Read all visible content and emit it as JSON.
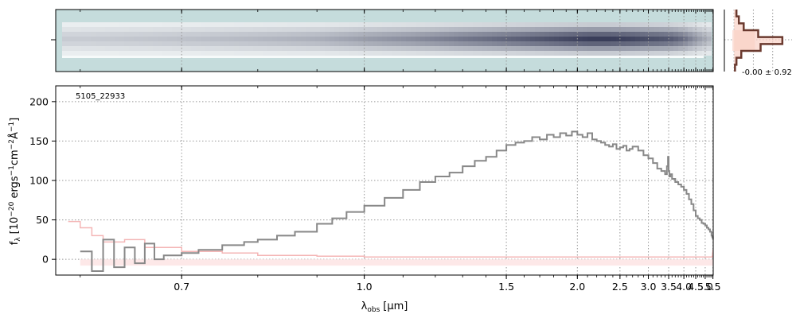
{
  "chart_data": [
    {
      "type": "heatmap",
      "description_ref": "2D spectrum",
      "x": [
        0.6,
        0.7,
        0.8,
        0.9,
        1.0,
        1.15,
        1.3,
        1.5,
        1.7,
        1.9,
        2.1,
        2.3,
        2.5,
        2.7,
        2.9,
        3.1,
        3.3,
        3.5,
        3.7,
        3.9,
        4.1,
        4.3,
        4.5,
        4.7,
        4.9,
        5.1,
        5.3,
        5.5
      ],
      "trace_intensity": [
        0.25,
        0.3,
        0.35,
        0.4,
        0.5,
        0.6,
        0.7,
        0.8,
        0.88,
        0.95,
        1.0,
        1.0,
        0.98,
        0.95,
        0.92,
        0.9,
        0.88,
        0.85,
        0.8,
        0.74,
        0.66,
        0.58,
        0.52,
        0.46,
        0.42,
        0.38,
        0.34,
        0.3
      ],
      "grid": true
    },
    {
      "type": "line",
      "annotation": "-0.00 ± 0.92",
      "profile_y": [
        -4,
        -3,
        -2,
        -1,
        0,
        1,
        2,
        3,
        4
      ],
      "profile_values": [
        0.05,
        0.1,
        0.2,
        0.5,
        1.0,
        0.55,
        0.15,
        0.05,
        0.02
      ],
      "xlim": [
        -0.2,
        1.2
      ],
      "grid": true
    },
    {
      "type": "line",
      "title": "",
      "annotation": "5105_22933",
      "xlabel": "λobs [μm]",
      "xlabel_main": "λ",
      "xlabel_sub": "obs",
      "xlabel_unit": "[μm]",
      "ylabel": "fλ [10−20 ergs−1cm−2Å−1]",
      "ylabel_f": "f",
      "ylabel_sub": "λ",
      "ylabel_open": "[10",
      "ylabel_e1": "−20",
      "ylabel_t1": " ergs",
      "ylabel_e2": "−1",
      "ylabel_t2": "cm",
      "ylabel_e3": "−2",
      "ylabel_t3": "Å",
      "ylabel_e4": "−1",
      "ylabel_close": "]",
      "xscale": "reciprocal",
      "xlim": [
        0.58,
        5.52
      ],
      "ylim": [
        -20,
        220
      ],
      "xticks": [
        0.7,
        1.0,
        1.5,
        2.0,
        2.5,
        3.0,
        3.5,
        4.0,
        4.5,
        5.0,
        5.5
      ],
      "xtick_labels": [
        "0.7",
        "1.0",
        "1.5",
        "2.0",
        "2.5",
        "3.0",
        "3.5",
        "4.0",
        "4.5",
        "5.0",
        "5.5"
      ],
      "yticks": [
        0,
        50,
        100,
        150,
        200
      ],
      "ytick_labels": [
        "0",
        "50",
        "100",
        "150",
        "200"
      ],
      "grid": true,
      "series": [
        {
          "color": "#888888",
          "x": [
            0.6,
            0.61,
            0.62,
            0.63,
            0.64,
            0.65,
            0.66,
            0.67,
            0.68,
            0.7,
            0.72,
            0.75,
            0.78,
            0.8,
            0.83,
            0.86,
            0.9,
            0.93,
            0.96,
            1.0,
            1.05,
            1.1,
            1.15,
            1.2,
            1.25,
            1.3,
            1.35,
            1.4,
            1.45,
            1.5,
            1.55,
            1.6,
            1.65,
            1.7,
            1.75,
            1.8,
            1.85,
            1.9,
            1.95,
            2.0,
            2.05,
            2.1,
            2.15,
            2.2,
            2.25,
            2.3,
            2.35,
            2.4,
            2.45,
            2.5,
            2.55,
            2.6,
            2.65,
            2.7,
            2.8,
            2.9,
            3.0,
            3.1,
            3.2,
            3.3,
            3.4,
            3.45,
            3.48,
            3.5,
            3.52,
            3.55,
            3.6,
            3.7,
            3.8,
            3.9,
            4.0,
            4.1,
            4.2,
            4.3,
            4.4,
            4.5,
            4.6,
            4.7,
            4.8,
            4.9,
            5.0,
            5.1,
            5.2,
            5.3,
            5.4,
            5.45,
            5.5
          ],
          "y": [
            10,
            -15,
            25,
            -10,
            15,
            -5,
            20,
            0,
            5,
            8,
            12,
            18,
            22,
            25,
            30,
            35,
            45,
            52,
            60,
            68,
            78,
            88,
            98,
            105,
            110,
            118,
            125,
            130,
            138,
            145,
            148,
            150,
            155,
            152,
            158,
            155,
            160,
            157,
            162,
            158,
            155,
            160,
            152,
            150,
            148,
            145,
            143,
            146,
            140,
            142,
            144,
            138,
            140,
            143,
            138,
            132,
            128,
            122,
            115,
            112,
            108,
            118,
            130,
            112,
            105,
            108,
            102,
            98,
            95,
            92,
            88,
            83,
            76,
            70,
            62,
            55,
            52,
            50,
            46,
            45,
            43,
            40,
            38,
            35,
            30,
            28,
            25
          ]
        },
        {
          "color": "#f4b6b6",
          "x": [
            0.59,
            0.6,
            0.61,
            0.62,
            0.64,
            0.66,
            0.7,
            0.75,
            0.8,
            0.9,
            1.0,
            1.5,
            2.0,
            2.5,
            3.0,
            3.5,
            4.0,
            4.5,
            5.0,
            5.3,
            5.45,
            5.48,
            5.5
          ],
          "y": [
            48,
            40,
            30,
            22,
            25,
            15,
            10,
            8,
            5,
            4,
            3,
            3,
            3,
            3,
            3,
            3,
            3,
            3,
            3,
            3,
            4,
            8,
            12
          ]
        },
        {
          "color": "#fde8e8",
          "x": [
            0.6,
            5.5
          ],
          "y": [
            -8,
            -8
          ]
        }
      ]
    }
  ]
}
